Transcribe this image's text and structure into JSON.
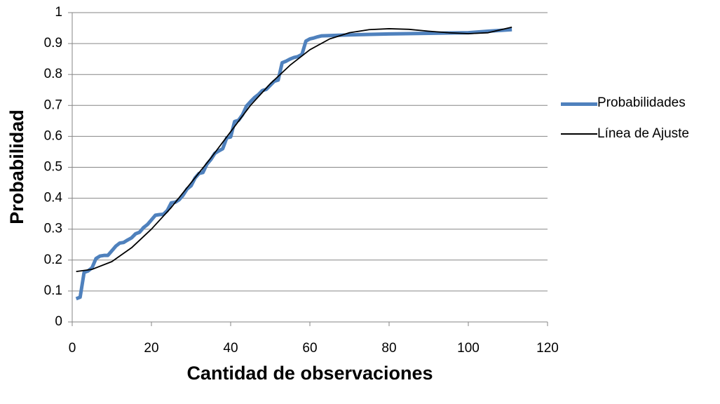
{
  "chart_data": {
    "type": "line",
    "xlabel": "Cantidad de observaciones",
    "ylabel": "Probabilidad",
    "xlim": [
      0,
      120
    ],
    "xticks": [
      0,
      20,
      40,
      60,
      80,
      100,
      120
    ],
    "ylim": [
      0,
      1
    ],
    "yticks": [
      0,
      0.1,
      0.2,
      0.3,
      0.4,
      0.5,
      0.6,
      0.7,
      0.8,
      0.9,
      1
    ],
    "grid": true,
    "legend": "right",
    "series": [
      {
        "name": "Probabilidades",
        "color": "#4f81bd",
        "x": [
          1,
          2,
          3,
          4,
          5,
          6,
          7,
          8,
          9,
          10,
          11,
          12,
          13,
          14,
          15,
          16,
          17,
          18,
          19,
          20,
          21,
          22,
          23,
          24,
          25,
          26,
          27,
          28,
          29,
          30,
          31,
          32,
          33,
          34,
          35,
          36,
          37,
          38,
          39,
          40,
          41,
          42,
          43,
          44,
          45,
          46,
          47,
          48,
          49,
          50,
          51,
          52,
          53,
          54,
          55,
          56,
          57,
          58,
          59,
          60,
          61,
          62,
          63,
          70,
          80,
          90,
          100,
          105,
          111
        ],
        "values": [
          0.075,
          0.08,
          0.16,
          0.165,
          0.175,
          0.205,
          0.213,
          0.215,
          0.215,
          0.23,
          0.245,
          0.255,
          0.257,
          0.265,
          0.272,
          0.285,
          0.29,
          0.305,
          0.315,
          0.33,
          0.345,
          0.347,
          0.348,
          0.36,
          0.385,
          0.387,
          0.395,
          0.41,
          0.43,
          0.44,
          0.465,
          0.48,
          0.483,
          0.51,
          0.525,
          0.545,
          0.553,
          0.56,
          0.595,
          0.598,
          0.648,
          0.652,
          0.67,
          0.698,
          0.712,
          0.725,
          0.735,
          0.748,
          0.752,
          0.765,
          0.778,
          0.782,
          0.838,
          0.843,
          0.85,
          0.855,
          0.858,
          0.865,
          0.908,
          0.915,
          0.918,
          0.922,
          0.925,
          0.928,
          0.931,
          0.933,
          0.935,
          0.94,
          0.945
        ]
      },
      {
        "name": "Línea de Ajuste",
        "color": "#000000",
        "x": [
          1,
          5,
          10,
          15,
          20,
          25,
          30,
          35,
          40,
          45,
          50,
          55,
          60,
          65,
          70,
          75,
          80,
          85,
          90,
          95,
          100,
          105,
          111
        ],
        "values": [
          0.163,
          0.17,
          0.195,
          0.24,
          0.3,
          0.37,
          0.45,
          0.53,
          0.615,
          0.7,
          0.77,
          0.83,
          0.88,
          0.915,
          0.935,
          0.945,
          0.948,
          0.946,
          0.94,
          0.935,
          0.932,
          0.935,
          0.953
        ]
      }
    ]
  }
}
